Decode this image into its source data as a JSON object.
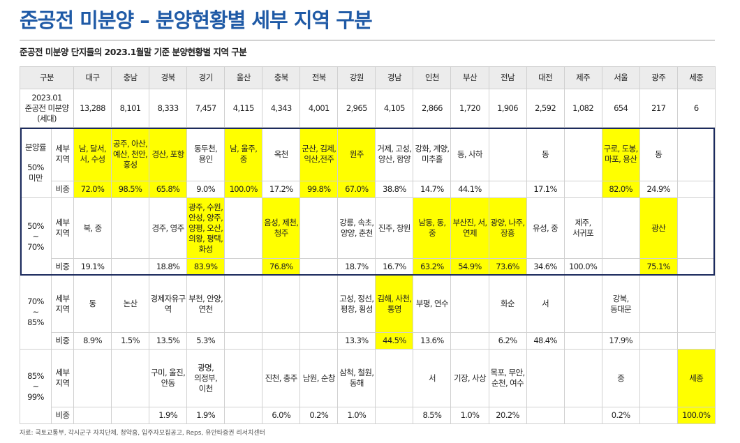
{
  "header": {
    "title": "준공전 미분양 – 분양현황별 세부 지역 구분",
    "subtitle": "준공전 미분양 단지들의 2023.1월말 기준 분양현황별 지역 구분"
  },
  "table": {
    "corner": "구분",
    "columns": [
      "대구",
      "충남",
      "경북",
      "경기",
      "울산",
      "충북",
      "전북",
      "강원",
      "경남",
      "인천",
      "부산",
      "전남",
      "대전",
      "제주",
      "서울",
      "광주",
      "세종"
    ],
    "count_label": "2023.01 준공전 미분양 (세대)",
    "counts": [
      "13,288",
      "8,101",
      "8,333",
      "7,457",
      "4,115",
      "4,343",
      "4,001",
      "2,965",
      "4,105",
      "2,866",
      "1,720",
      "1,906",
      "2,592",
      "1,082",
      "654",
      "217",
      "6"
    ],
    "highlight_color": "#ffff00",
    "box_color": "#1c2b5e",
    "groups": [
      {
        "label": [
          "분양률",
          "50%",
          "미만"
        ],
        "detail_label": "세부 지역",
        "share_label": "비중",
        "areas": [
          "남, 달서, 서, 수성",
          "공주, 아산, 예산, 천안, 홍성",
          "경산, 포항",
          "동두천, 용인",
          "남, 울주, 중",
          "옥천",
          "군산, 김제, 익산,전주",
          "원주",
          "거제, 고성, 양산, 함양",
          "강화, 계양, 미추홀",
          "동, 사하",
          null,
          "동",
          null,
          "구로, 도봉, 마포, 용산",
          "동",
          null
        ],
        "shares": [
          "72.0%",
          "98.5%",
          "65.8%",
          "9.0%",
          "100.0%",
          "17.2%",
          "99.8%",
          "67.0%",
          "38.8%",
          "14.7%",
          "44.1%",
          null,
          "17.1%",
          null,
          "82.0%",
          "24.9%",
          null
        ],
        "highlight": [
          0,
          1,
          2,
          4,
          6,
          7,
          14
        ],
        "boxed": true
      },
      {
        "label": [
          "50%",
          "~",
          "70%"
        ],
        "detail_label": "세부 지역",
        "share_label": "비중",
        "areas": [
          "북, 중",
          null,
          "경주, 영주",
          "광주, 수원, 안성, 양주, 양평, 오산, 의왕, 평택, 화성",
          null,
          "음성, 제천, 청주",
          null,
          "강릉, 속초, 양양, 춘천",
          "진주, 창원",
          "남동, 동, 중",
          "부산진, 서, 연제",
          "광양, 나주, 장흥",
          "유성, 중",
          "제주, 서귀포",
          null,
          "광산",
          null
        ],
        "shares": [
          "19.1%",
          null,
          "18.8%",
          "83.9%",
          null,
          "76.8%",
          null,
          "18.7%",
          "16.7%",
          "63.2%",
          "54.9%",
          "73.6%",
          "34.6%",
          "100.0%",
          null,
          "75.1%",
          null
        ],
        "highlight": [
          3,
          5,
          9,
          10,
          11,
          15
        ],
        "boxed": true
      },
      {
        "label": [
          "70%",
          "~",
          "85%"
        ],
        "detail_label": "세부 지역",
        "share_label": "비중",
        "areas": [
          "동",
          "논산",
          "경제자유구역",
          "부천, 안양, 연천",
          null,
          null,
          null,
          "고성, 정선, 평창, 횡성",
          "김해, 사천, 통영",
          "부평, 연수",
          null,
          "화순",
          "서",
          null,
          "강북, 동대문",
          null,
          null
        ],
        "shares": [
          "8.9%",
          "1.5%",
          "13.5%",
          "5.3%",
          null,
          null,
          null,
          "13.3%",
          "44.5%",
          "13.6%",
          null,
          "6.2%",
          "48.4%",
          null,
          "17.9%",
          null,
          null
        ],
        "highlight": [
          8
        ],
        "boxed": false
      },
      {
        "label": [
          "85%",
          "~",
          "99%"
        ],
        "detail_label": "세부 지역",
        "share_label": "비중",
        "areas": [
          null,
          null,
          "구미, 울진, 안동",
          "광명, 의정부, 이천",
          null,
          "진천, 충주",
          "남원, 순창",
          "삼척, 철원, 동해",
          null,
          "서",
          "기장, 사상",
          "목포, 무안, 순천, 여수",
          null,
          null,
          "중",
          null,
          "세종"
        ],
        "shares": [
          null,
          null,
          "1.9%",
          "1.9%",
          null,
          "6.0%",
          "0.2%",
          "1.0%",
          null,
          "8.5%",
          "1.0%",
          "20.2%",
          null,
          null,
          "0.2%",
          null,
          "100.0%"
        ],
        "highlight": [
          16
        ],
        "boxed": false
      }
    ]
  },
  "footer": {
    "source": "자료: 국토교통부, 각시군구 자치단체, 청약홈, 입주자모집공고, Reps, 유안타증권 리서치센터"
  }
}
